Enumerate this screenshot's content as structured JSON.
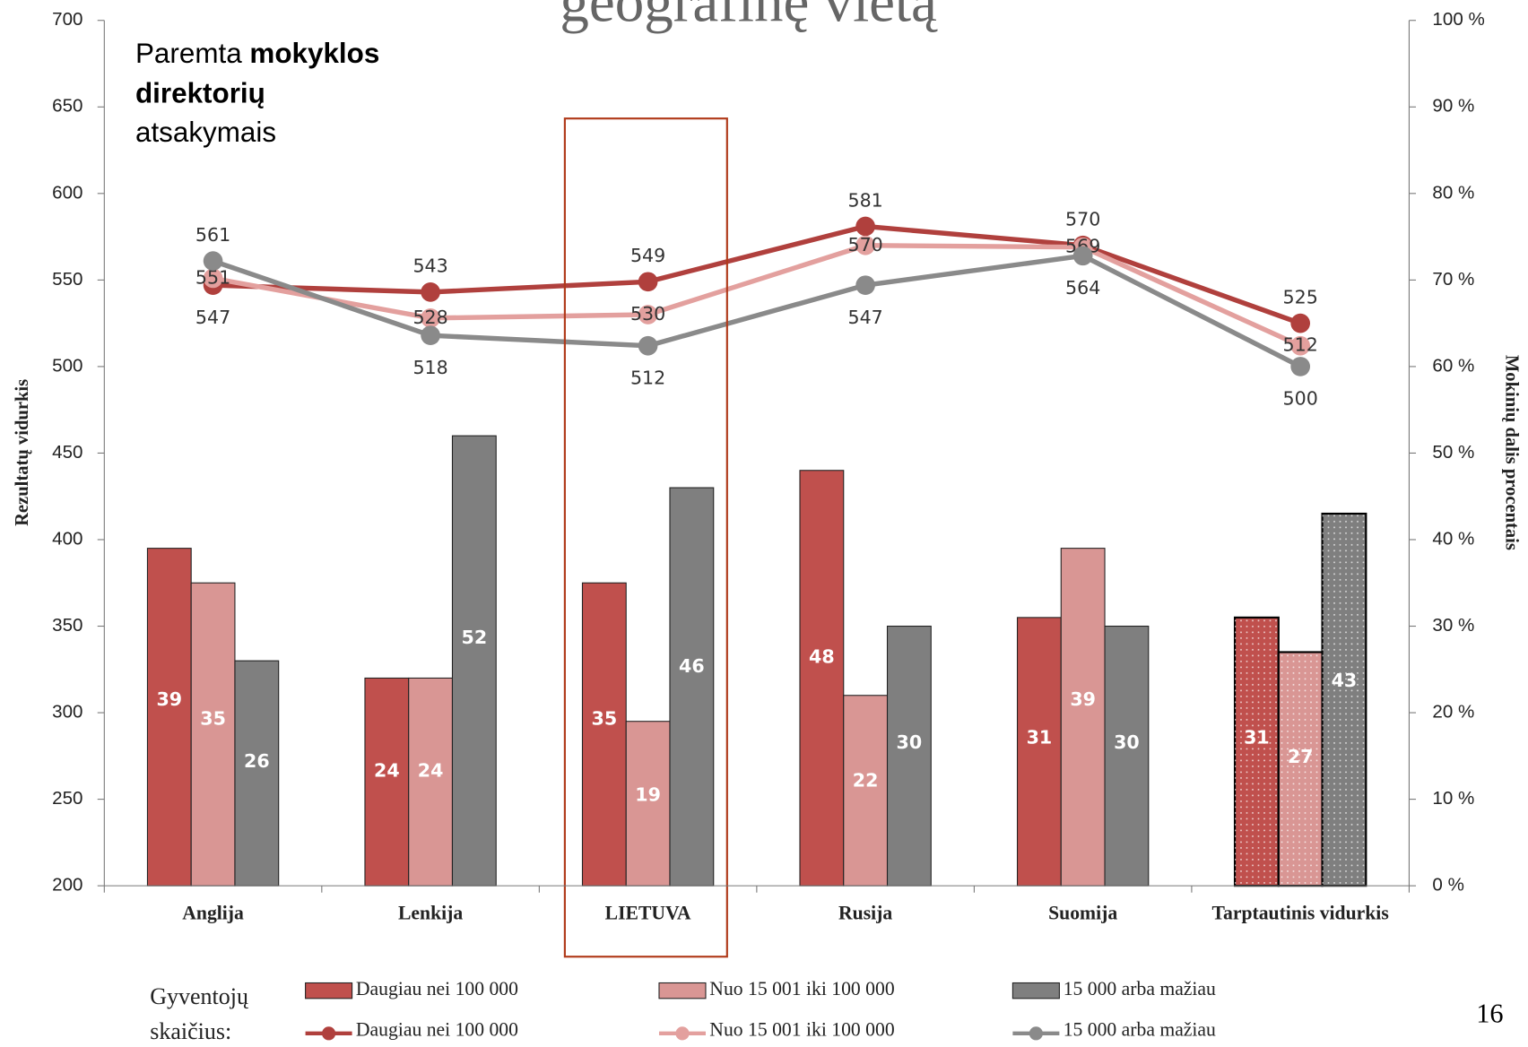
{
  "chart_data": {
    "type": "bar_line",
    "title": "geografinę vietą",
    "annotation": [
      "Paremta",
      "mokyklos",
      "direktorių",
      "atsakymais"
    ],
    "y_label": "Rezultatų vidurkis",
    "y2_label": "Mokinių dalis procentais",
    "legend_title": [
      "Gyventojų",
      "skaičius:"
    ],
    "page_number": "16",
    "categories": [
      "Anglija",
      "Lenkija",
      "LIETUVA",
      "Rusija",
      "Suomija",
      "Tarptautinis vidurkis"
    ],
    "dotted_category": 5,
    "ylim": [
      200,
      700
    ],
    "yticks": [
      200,
      250,
      300,
      350,
      400,
      450,
      500,
      550,
      600,
      650,
      700
    ],
    "y2lim": [
      0,
      100
    ],
    "y2ticks": [
      {
        "value": 0,
        "label": "0 %"
      },
      {
        "value": 10,
        "label": "10 %"
      },
      {
        "value": 20,
        "label": "20 %"
      },
      {
        "value": 30,
        "label": "30 %"
      },
      {
        "value": 40,
        "label": "40 %"
      },
      {
        "value": 50,
        "label": "50 %"
      },
      {
        "value": 60,
        "label": "60 %"
      },
      {
        "value": 70,
        "label": "70 %"
      },
      {
        "value": 80,
        "label": "80 %"
      },
      {
        "value": 90,
        "label": "90 %"
      },
      {
        "value": 100,
        "label": "100 %"
      }
    ],
    "series": [
      {
        "name": "Daugiau nei 100 000",
        "type": "bar",
        "axis": "y2",
        "color": "#c0504d",
        "values": [
          39,
          24,
          35,
          48,
          31,
          31
        ]
      },
      {
        "name": "Nuo 15 001 iki 100 000",
        "type": "bar",
        "axis": "y2",
        "color": "#d99694",
        "values": [
          35,
          24,
          19,
          22,
          39,
          27
        ]
      },
      {
        "name": "15 000 arba mažiau",
        "type": "bar",
        "axis": "y2",
        "color": "#7f7f7f",
        "values": [
          26,
          52,
          46,
          30,
          30,
          43
        ]
      },
      {
        "name": "Daugiau nei 100 000",
        "type": "line",
        "axis": "y",
        "color": "#b0403d",
        "values": [
          547,
          543,
          549,
          581,
          570,
          525
        ]
      },
      {
        "name": "Nuo 15 001 iki 100 000",
        "type": "line",
        "axis": "y",
        "color": "#e3a09e",
        "values": [
          551,
          528,
          530,
          570,
          569,
          512
        ]
      },
      {
        "name": "15 000 arba mažiau",
        "type": "line",
        "axis": "y",
        "color": "#8a8a8a",
        "values": [
          561,
          518,
          512,
          547,
          564,
          500
        ]
      }
    ]
  }
}
